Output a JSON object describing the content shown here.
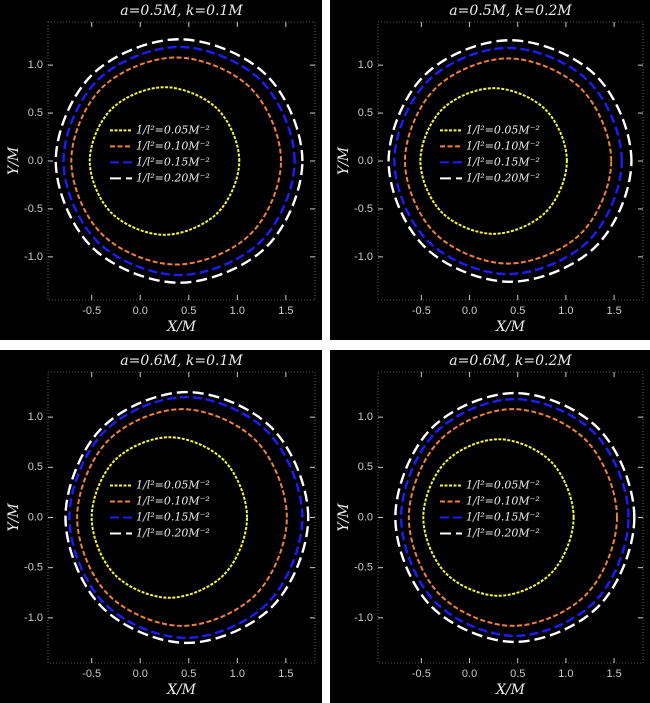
{
  "chart_data": [
    {
      "type": "line",
      "title": "a=0.5M, k=0.1M",
      "xlabel": "X/M",
      "ylabel": "Y/M",
      "xlim": [
        -0.95,
        1.8
      ],
      "ylim": [
        -1.45,
        1.45
      ],
      "xticks": [
        -0.5,
        {
          "value": 0,
          "label": "0.0"
        },
        0.5,
        {
          "value": 1,
          "label": "1.0"
        },
        1.5
      ],
      "yticks": [
        {
          "value": -1,
          "label": "-1.0"
        },
        -0.5,
        {
          "value": 0,
          "label": "0.0"
        },
        0.5,
        {
          "value": 1,
          "label": "1.0"
        }
      ],
      "series": [
        {
          "name": "1/l²=0.05M⁻²",
          "color": "#f5f53c",
          "x": [
            1.02,
            0.794,
            0.25,
            -0.294,
            -0.52,
            -0.294,
            0.25,
            0.794
          ],
          "y": [
            0,
            0.544,
            0.77,
            0.544,
            0,
            -0.544,
            -0.77,
            -0.544
          ]
        },
        {
          "name": "1/l²=0.10M⁻²",
          "color": "#f0803c",
          "x": [
            1.45,
            1.134,
            0.37,
            -0.394,
            -0.71,
            -0.394,
            0.37,
            1.134
          ],
          "y": [
            0,
            0.764,
            1.08,
            0.764,
            0,
            -0.764,
            -1.08,
            -0.764
          ]
        },
        {
          "name": "1/l²=0.15M⁻²",
          "color": "#1c1cff",
          "x": [
            1.59,
            1.241,
            0.4,
            -0.441,
            -0.79,
            -0.441,
            0.4,
            1.241
          ],
          "y": [
            0,
            0.841,
            1.19,
            0.841,
            0,
            -0.841,
            -1.19,
            -0.841
          ]
        },
        {
          "name": "1/l²=0.20M⁻²",
          "color": "#ffffff",
          "x": [
            1.67,
            1.298,
            0.4,
            -0.498,
            -0.87,
            -0.498,
            0.4,
            1.298
          ],
          "y": [
            0,
            0.898,
            1.27,
            0.898,
            0,
            -0.898,
            -1.27,
            -0.898
          ]
        }
      ]
    },
    {
      "type": "line",
      "title": "a=0.5M, k=0.2M",
      "xlabel": "X/M",
      "ylabel": "Y/M",
      "xlim": [
        -0.95,
        1.8
      ],
      "ylim": [
        -1.45,
        1.45
      ],
      "xticks": [
        -0.5,
        {
          "value": 0,
          "label": "0.0"
        },
        0.5,
        {
          "value": 1,
          "label": "1.0"
        },
        1.5
      ],
      "yticks": [
        {
          "value": -1,
          "label": "-1.0"
        },
        -0.5,
        {
          "value": 0,
          "label": "0.0"
        },
        0.5,
        {
          "value": 1,
          "label": "1.0"
        }
      ],
      "series": [
        {
          "name": "1/l²=0.05M⁻²",
          "color": "#f5f53c",
          "x": [
            1.01,
            0.787,
            0.25,
            -0.287,
            -0.51,
            -0.287,
            0.25,
            0.787
          ],
          "y": [
            0,
            0.537,
            0.76,
            0.537,
            0,
            -0.537,
            -0.76,
            -0.537
          ]
        },
        {
          "name": "1/l²=0.10M⁻²",
          "color": "#f0803c",
          "x": [
            1.47,
            1.156,
            0.4,
            -0.356,
            -0.67,
            -0.356,
            0.4,
            1.156
          ],
          "y": [
            0,
            0.756,
            1.07,
            0.756,
            0,
            -0.756,
            -1.07,
            -0.756
          ]
        },
        {
          "name": "1/l²=0.15M⁻²",
          "color": "#1c1cff",
          "x": [
            1.58,
            1.234,
            0.4,
            -0.434,
            -0.78,
            -0.434,
            0.4,
            1.234
          ],
          "y": [
            0,
            0.834,
            1.18,
            0.834,
            0,
            -0.834,
            -1.18,
            -0.834
          ]
        },
        {
          "name": "1/l²=0.20M⁻²",
          "color": "#ffffff",
          "x": [
            1.68,
            1.311,
            0.42,
            -0.471,
            -0.84,
            -0.471,
            0.42,
            1.311
          ],
          "y": [
            0,
            0.891,
            1.26,
            0.891,
            0,
            -0.891,
            -1.26,
            -0.891
          ]
        }
      ]
    },
    {
      "type": "line",
      "title": "a=0.6M, k=0.1M",
      "xlabel": "X/M",
      "ylabel": "Y/M",
      "xlim": [
        -0.95,
        1.8
      ],
      "ylim": [
        -1.45,
        1.45
      ],
      "xticks": [
        -0.5,
        {
          "value": 0,
          "label": "0.0"
        },
        0.5,
        {
          "value": 1,
          "label": "1.0"
        },
        1.5
      ],
      "yticks": [
        {
          "value": -1,
          "label": "-1.0"
        },
        -0.5,
        {
          "value": 0,
          "label": "0.0"
        },
        0.5,
        {
          "value": 1,
          "label": "1.0"
        }
      ],
      "series": [
        {
          "name": "1/l²=0.05M⁻²",
          "color": "#f5f53c",
          "x": [
            1.1,
            0.866,
            0.3,
            -0.266,
            -0.5,
            -0.266,
            0.3,
            0.866
          ],
          "y": [
            0,
            0.566,
            0.8,
            0.566,
            0,
            -0.566,
            -0.8,
            -0.566
          ]
        },
        {
          "name": "1/l²=0.10M⁻²",
          "color": "#f0803c",
          "x": [
            1.51,
            1.194,
            0.43,
            -0.334,
            -0.65,
            -0.334,
            0.43,
            1.194
          ],
          "y": [
            0,
            0.764,
            1.08,
            0.764,
            0,
            -0.764,
            -1.08,
            -0.764
          ]
        },
        {
          "name": "1/l²=0.15M⁻²",
          "color": "#1c1cff",
          "x": [
            1.67,
            1.318,
            0.47,
            -0.378,
            -0.73,
            -0.378,
            0.47,
            1.318
          ],
          "y": [
            0,
            0.848,
            1.2,
            0.848,
            0,
            -0.848,
            -1.2,
            -0.848
          ]
        },
        {
          "name": "1/l²=0.20M⁻²",
          "color": "#ffffff",
          "x": [
            1.73,
            1.364,
            0.48,
            -0.404,
            -0.77,
            -0.404,
            0.48,
            1.364
          ],
          "y": [
            0,
            0.884,
            1.25,
            0.884,
            0,
            -0.884,
            -1.25,
            -0.884
          ]
        }
      ]
    },
    {
      "type": "line",
      "title": "a=0.6M, k=0.2M",
      "xlabel": "X/M",
      "ylabel": "Y/M",
      "xlim": [
        -0.95,
        1.8
      ],
      "ylim": [
        -1.45,
        1.45
      ],
      "xticks": [
        -0.5,
        {
          "value": 0,
          "label": "0.0"
        },
        0.5,
        {
          "value": 1,
          "label": "1.0"
        },
        1.5
      ],
      "yticks": [
        {
          "value": -1,
          "label": "-1.0"
        },
        -0.5,
        {
          "value": 0,
          "label": "0.0"
        },
        0.5,
        {
          "value": 1,
          "label": "1.0"
        }
      ],
      "series": [
        {
          "name": "1/l²=0.05M⁻²",
          "color": "#f5f53c",
          "x": [
            1.08,
            0.851,
            0.3,
            -0.251,
            -0.48,
            -0.251,
            0.3,
            0.851
          ],
          "y": [
            0,
            0.551,
            0.78,
            0.551,
            0,
            -0.551,
            -0.78,
            -0.551
          ]
        },
        {
          "name": "1/l²=0.10M⁻²",
          "color": "#f0803c",
          "x": [
            1.53,
            1.214,
            0.45,
            -0.314,
            -0.63,
            -0.314,
            0.45,
            1.214
          ],
          "y": [
            0,
            0.764,
            1.08,
            0.764,
            0,
            -0.764,
            -1.08,
            -0.764
          ]
        },
        {
          "name": "1/l²=0.15M⁻²",
          "color": "#1c1cff",
          "x": [
            1.65,
            1.304,
            0.47,
            -0.364,
            -0.71,
            -0.364,
            0.47,
            1.304
          ],
          "y": [
            0,
            0.834,
            1.18,
            0.834,
            0,
            -0.834,
            -1.18,
            -0.834
          ]
        },
        {
          "name": "1/l²=0.20M⁻²",
          "color": "#ffffff",
          "x": [
            1.71,
            1.347,
            0.47,
            -0.407,
            -0.77,
            -0.407,
            0.47,
            1.347
          ],
          "y": [
            0,
            0.877,
            1.24,
            0.877,
            0,
            -0.877,
            -1.24,
            -0.877
          ]
        }
      ]
    }
  ]
}
